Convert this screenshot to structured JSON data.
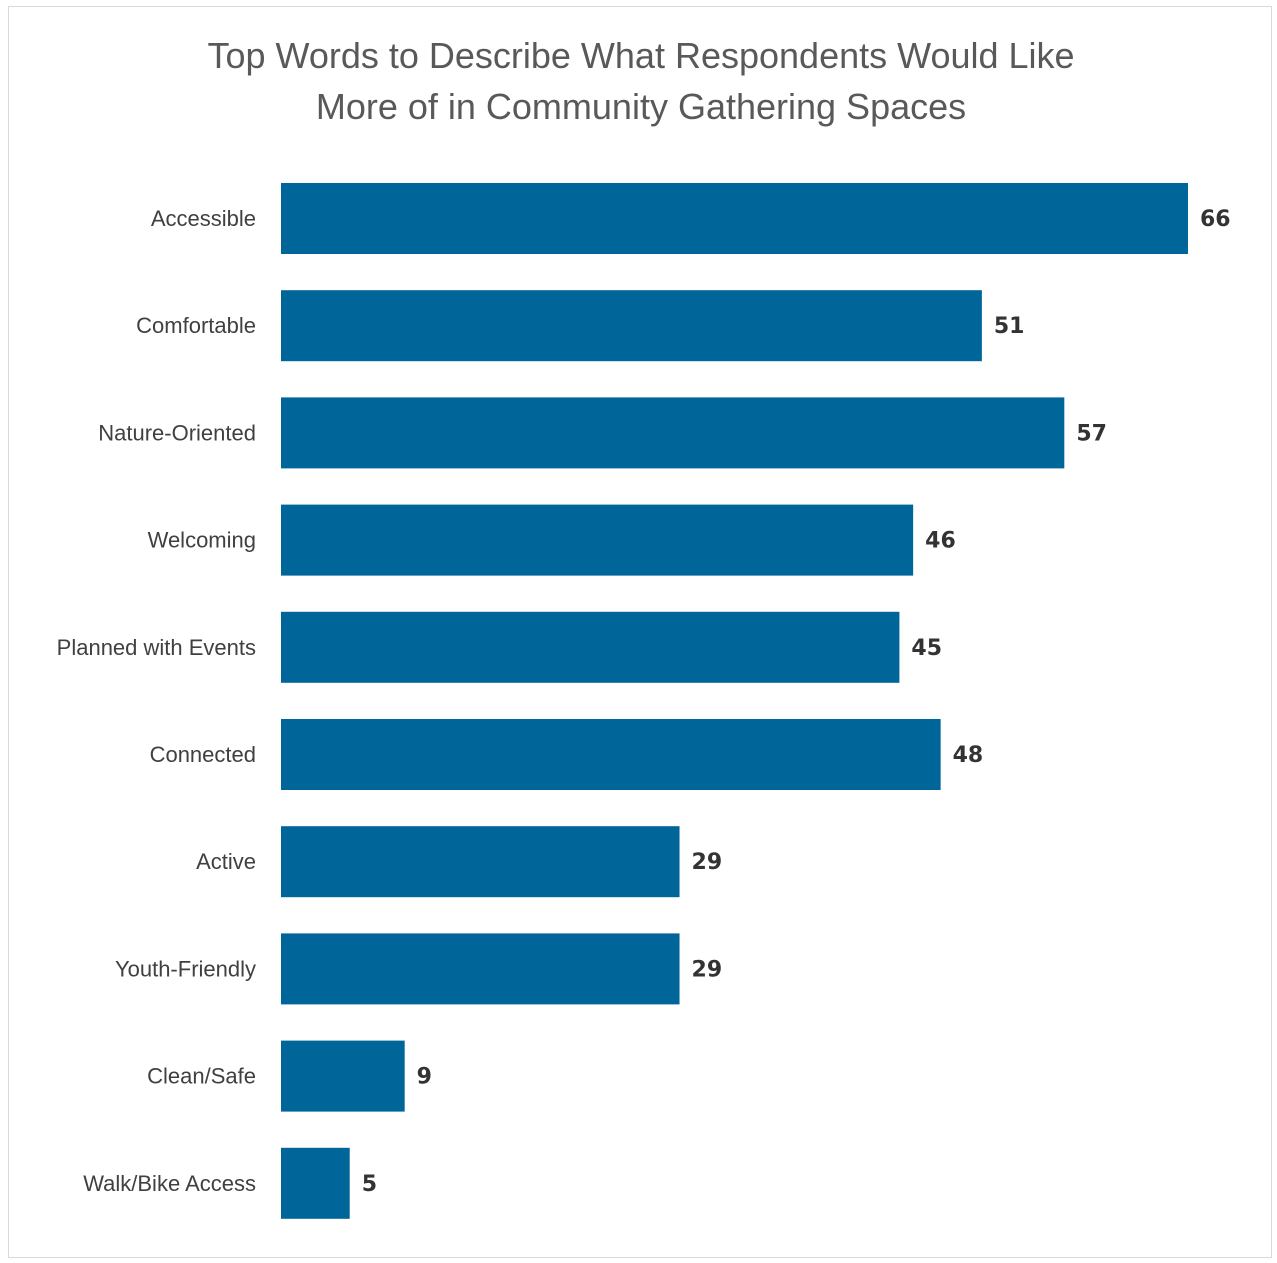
{
  "chart_data": {
    "type": "bar",
    "orientation": "horizontal",
    "title_lines": [
      "Top Words to Describe What Respondents Would Like",
      "More of in Community Gathering Spaces"
    ],
    "categories": [
      "Accessible",
      "Comfortable",
      "Nature-Oriented",
      "Welcoming",
      "Planned with Events",
      "Connected",
      "Active",
      "Youth-Friendly",
      "Clean/Safe",
      "Walk/Bike Access"
    ],
    "values": [
      66,
      51,
      57,
      46,
      45,
      48,
      29,
      29,
      9,
      5
    ],
    "bar_color": "#006699",
    "xlabel": "",
    "ylabel": "",
    "xlim": [
      0,
      66
    ],
    "grid": false,
    "legend": "none",
    "data_labels": true
  }
}
